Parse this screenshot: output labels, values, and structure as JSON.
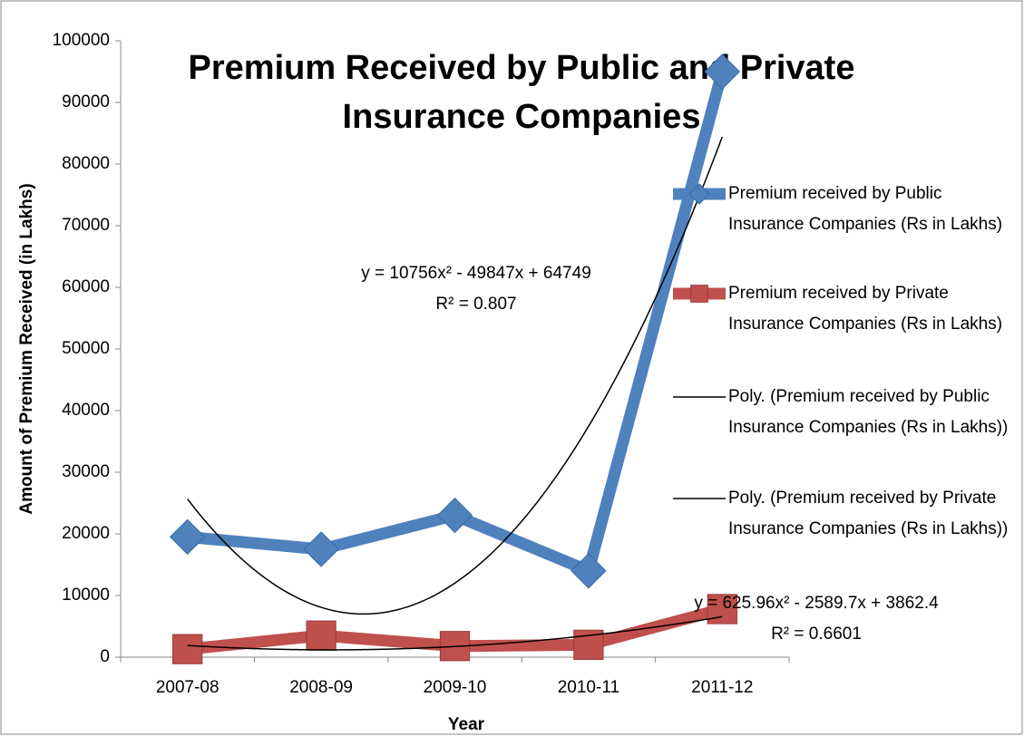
{
  "chart_data": {
    "type": "line",
    "title": "Premium Received by Public and Private Insurance Companies",
    "x_label": "Year",
    "y_label": "Amount of Premium Received (in Lakhs)",
    "categories": [
      "2007-08",
      "2008-09",
      "2009-10",
      "2010-11",
      "2011-12"
    ],
    "series": [
      {
        "name": "Premium received by Public Insurance Companies (Rs in Lakhs)",
        "color": "#4f81bd",
        "marker": "diamond",
        "values": [
          19500,
          17500,
          23000,
          14000,
          95000
        ]
      },
      {
        "name": "Premium received by Private Insurance Companies (Rs in Lakhs)",
        "color": "#c0504d",
        "marker": "square",
        "values": [
          1300,
          3500,
          1800,
          2000,
          7800
        ]
      }
    ],
    "trendlines": [
      {
        "name": "Poly. (Premium received by Public Insurance Companies (Rs in Lakhs))",
        "color": "#000000",
        "coefficients": [
          10756,
          -49847,
          64749
        ],
        "equation_label": "y = 10756x² - 49847x + 64749",
        "r2": 0.807,
        "r2_label": "R² = 0.807"
      },
      {
        "name": "Poly. (Premium received by Private Insurance Companies (Rs in Lakhs))",
        "color": "#000000",
        "coefficients": [
          625.96,
          -2589.7,
          3862.4
        ],
        "equation_label": "y = 625.96x² - 2589.7x + 3862.4",
        "r2": 0.6601,
        "r2_label": "R² = 0.6601"
      }
    ],
    "ylim": [
      0,
      100000
    ],
    "yticks": [
      0,
      10000,
      20000,
      30000,
      40000,
      50000,
      60000,
      70000,
      80000,
      90000,
      100000
    ],
    "grid": false,
    "legend": "right"
  }
}
